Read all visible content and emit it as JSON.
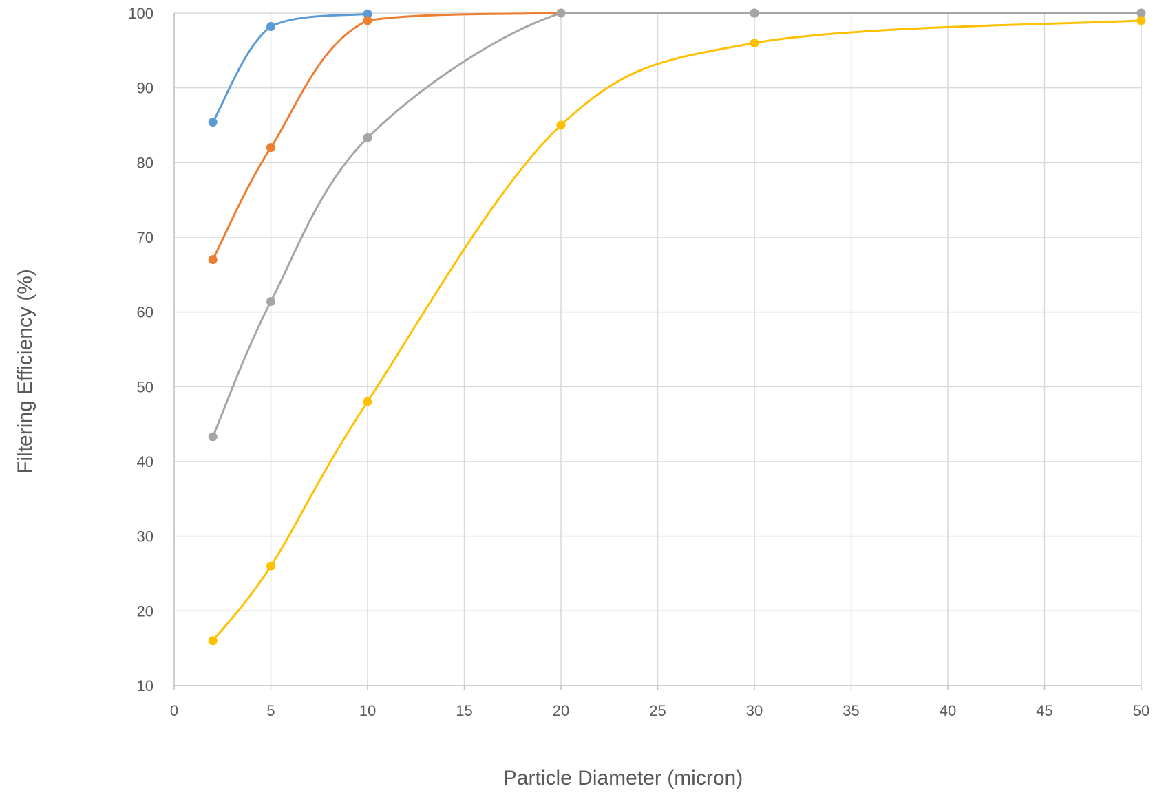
{
  "chart_data": {
    "type": "line",
    "xlabel": "Particle Diameter (micron)",
    "ylabel": "Filtering Efficiency (%)",
    "xlim": [
      0,
      50
    ],
    "ylim": [
      10,
      100
    ],
    "x_ticks": [
      0,
      5,
      10,
      15,
      20,
      25,
      30,
      35,
      40,
      45,
      50
    ],
    "y_ticks": [
      10,
      20,
      30,
      40,
      50,
      60,
      70,
      80,
      90,
      100
    ],
    "grid": true,
    "smooth": true,
    "series": [
      {
        "color": "#5b9bd5",
        "x": [
          2,
          5,
          10
        ],
        "values": [
          85.4,
          98.2,
          99.9
        ]
      },
      {
        "color": "#ed7d31",
        "x": [
          2,
          5,
          10,
          20,
          30,
          50
        ],
        "values": [
          67,
          82,
          99,
          100,
          100,
          100
        ]
      },
      {
        "color": "#a5a5a5",
        "x": [
          2,
          5,
          10,
          20,
          30,
          50
        ],
        "values": [
          43.3,
          61.4,
          83.3,
          100,
          100,
          100
        ]
      },
      {
        "color": "#ffc000",
        "x": [
          2,
          5,
          10,
          20,
          30,
          50
        ],
        "values": [
          16,
          26,
          48,
          85,
          96,
          99
        ]
      }
    ]
  }
}
